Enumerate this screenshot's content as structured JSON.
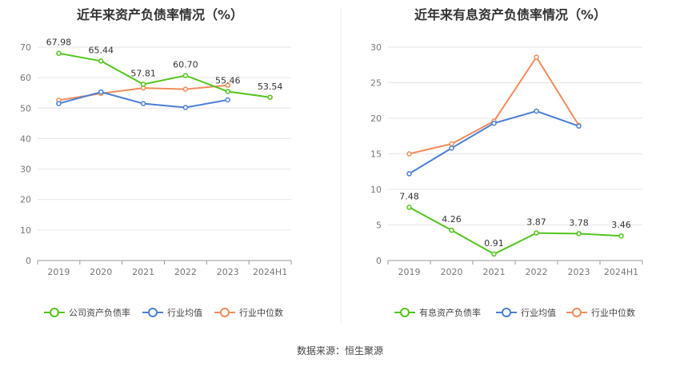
{
  "source_text": "数据来源：恒生聚源",
  "chart_data": [
    {
      "type": "line",
      "title": "近年来资产负债率情况（%）",
      "categories": [
        "2019",
        "2020",
        "2021",
        "2022",
        "2023",
        "2024H1"
      ],
      "ylim": [
        0,
        70
      ],
      "yticks": [
        0,
        10,
        20,
        30,
        40,
        50,
        60,
        70
      ],
      "grid": true,
      "legend_position": "bottom",
      "series": [
        {
          "name": "公司资产负债率",
          "color": "#52c41a",
          "values": [
            67.98,
            65.44,
            57.81,
            60.7,
            55.46,
            53.54
          ],
          "labels": [
            "67.98",
            "65.44",
            "57.81",
            "60.70",
            "55.46",
            "53.54"
          ]
        },
        {
          "name": "行业均值",
          "color": "#4a7fd4",
          "values": [
            51.5,
            55.3,
            51.5,
            50.2,
            52.7,
            null
          ]
        },
        {
          "name": "行业中位数",
          "color": "#f08c5a",
          "values": [
            52.6,
            54.8,
            56.6,
            56.2,
            57.5,
            null
          ]
        }
      ]
    },
    {
      "type": "line",
      "title": "近年来有息资产负债率情况（%）",
      "categories": [
        "2019",
        "2020",
        "2021",
        "2022",
        "2023",
        "2024H1"
      ],
      "ylim": [
        0,
        30
      ],
      "yticks": [
        0,
        5,
        10,
        15,
        20,
        25,
        30
      ],
      "grid": true,
      "legend_position": "bottom",
      "series": [
        {
          "name": "有息资产负债率",
          "color": "#52c41a",
          "values": [
            7.48,
            4.26,
            0.91,
            3.87,
            3.78,
            3.46
          ],
          "labels": [
            "7.48",
            "4.26",
            "0.91",
            "3.87",
            "3.78",
            "3.46"
          ]
        },
        {
          "name": "行业均值",
          "color": "#4a7fd4",
          "values": [
            12.2,
            15.8,
            19.3,
            21.0,
            18.9,
            null
          ]
        },
        {
          "name": "行业中位数",
          "color": "#f08c5a",
          "values": [
            15.0,
            16.4,
            19.6,
            28.6,
            19.0,
            null
          ]
        }
      ]
    }
  ]
}
